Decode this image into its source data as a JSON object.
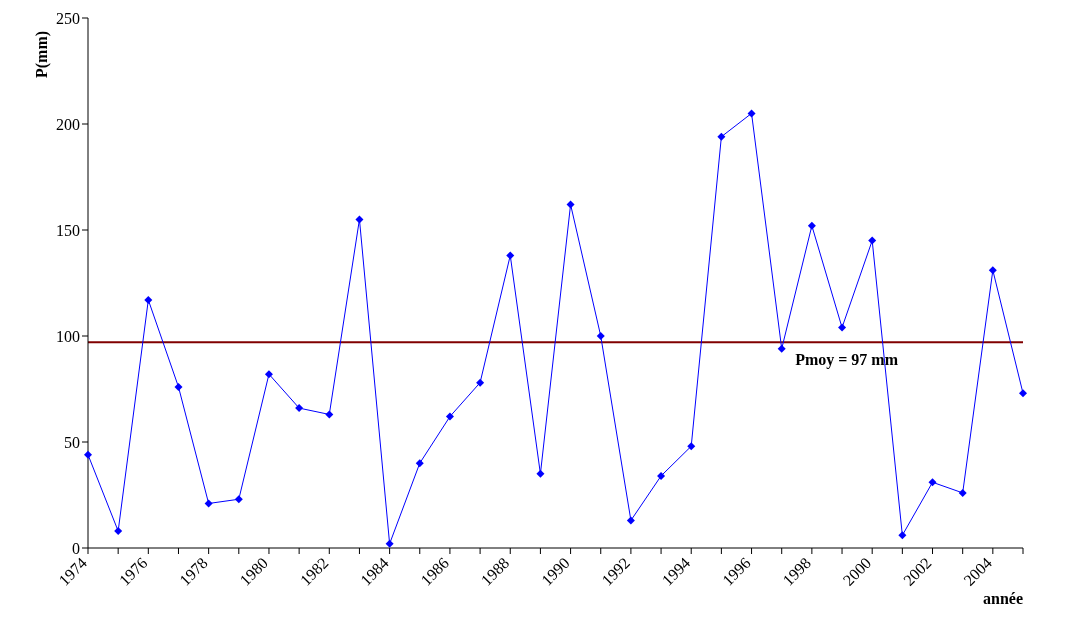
{
  "chart_data": {
    "type": "line",
    "xlabel": "année",
    "ylabel": "P(mm)",
    "categories": [
      "1974",
      null,
      "1976",
      null,
      "1978",
      null,
      "1980",
      null,
      "1982",
      null,
      "1984",
      null,
      "1986",
      null,
      "1988",
      null,
      "1990",
      null,
      "1992",
      null,
      "1994",
      null,
      "1996",
      null,
      "1998",
      null,
      "2000",
      null,
      "2002",
      null,
      "2004",
      null
    ],
    "series": [
      {
        "color": "#0000ff",
        "values": [
          44,
          8,
          117,
          76,
          21,
          23,
          82,
          66,
          63,
          155,
          2,
          40,
          62,
          78,
          138,
          35,
          162,
          100,
          13,
          34,
          48,
          194,
          205,
          94,
          152,
          104,
          145,
          6,
          31,
          26,
          131,
          73
        ]
      }
    ],
    "ylim": [
      0,
      250
    ],
    "yticks": [
      0,
      50,
      100,
      150,
      200,
      250
    ],
    "ref_lines": [
      {
        "axis": "y",
        "value": 97,
        "label": "Pmoy = 97 mm",
        "color": "#800000"
      }
    ],
    "grid": false,
    "legend": false,
    "marker": "diamond",
    "line_style": "solid"
  }
}
